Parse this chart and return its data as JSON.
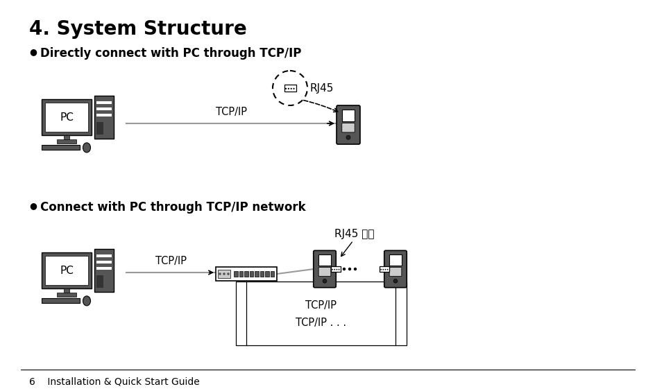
{
  "title": "4. System Structure",
  "title_fontsize": 20,
  "bullet1": "Directly connect with PC through TCP/IP",
  "bullet2": "Connect with PC through TCP/IP network",
  "bullet_fontsize": 12,
  "footer_text": "6    Installation & Quick Start Guide",
  "footer_fontsize": 10,
  "bg_color": "#ffffff",
  "dark_gray": "#555555",
  "mid_gray": "#888888",
  "light_gray": "#cccccc",
  "line_color": "#999999",
  "tcp_ip_label": "TCP/IP",
  "rj45_label": "RJ45",
  "rj45_label2": "RJ45 接口",
  "tcp_ip_label2": "TCP/IP",
  "tcp_ip_label3": "TCP/IP . . .",
  "pc_label": "PC"
}
